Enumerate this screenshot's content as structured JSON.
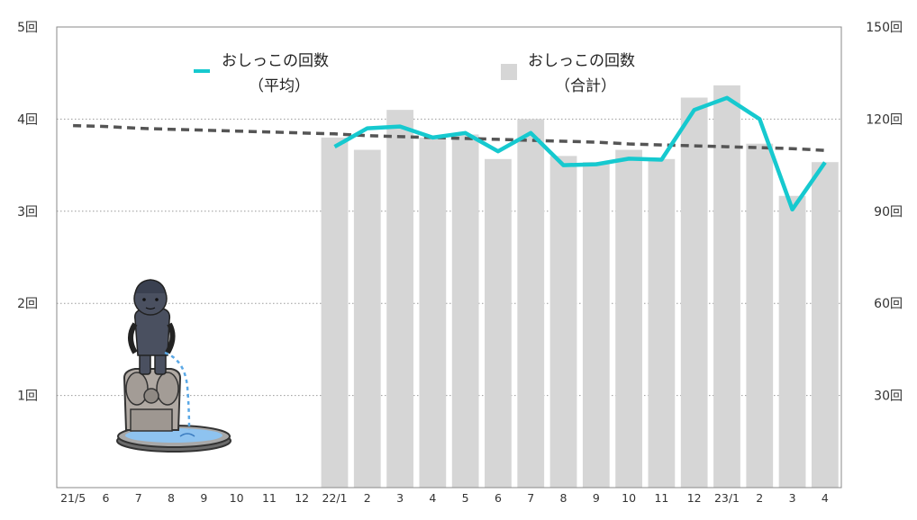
{
  "chart_data": {
    "type": "bar",
    "categories": [
      "21/5",
      "6",
      "7",
      "8",
      "9",
      "10",
      "11",
      "12",
      "22/1",
      "2",
      "3",
      "4",
      "5",
      "6",
      "7",
      "8",
      "9",
      "10",
      "11",
      "12",
      "23/1",
      "2",
      "3",
      "4"
    ],
    "series": [
      {
        "name": "おしっこの回数（合計）",
        "kind": "bar",
        "axis": "right",
        "color": "#d6d6d6",
        "values": [
          null,
          null,
          null,
          null,
          null,
          null,
          null,
          null,
          114,
          110,
          123,
          114,
          115,
          107,
          120,
          108,
          106,
          110,
          107,
          127,
          131,
          112,
          95,
          106
        ]
      },
      {
        "name": "おしっこの回数（平均）",
        "kind": "line",
        "axis": "left",
        "color": "#16c9cf",
        "values": [
          null,
          null,
          null,
          null,
          null,
          null,
          null,
          null,
          3.7,
          3.9,
          3.92,
          3.8,
          3.85,
          3.65,
          3.85,
          3.5,
          3.51,
          3.57,
          3.56,
          4.1,
          4.23,
          4.0,
          3.02,
          3.53
        ]
      },
      {
        "name": "trend",
        "kind": "dashed-line",
        "axis": "left",
        "color": "#555555",
        "values": [
          3.93,
          3.92,
          3.9,
          3.89,
          3.88,
          3.87,
          3.86,
          3.85,
          3.84,
          3.82,
          3.81,
          3.8,
          3.79,
          3.78,
          3.77,
          3.76,
          3.75,
          3.73,
          3.72,
          3.71,
          3.7,
          3.69,
          3.68,
          3.66
        ]
      }
    ],
    "y_left": {
      "ticks": [
        "1回",
        "2回",
        "3回",
        "4回",
        "5回"
      ],
      "tick_values": [
        1,
        2,
        3,
        4,
        5
      ],
      "range": [
        0,
        5
      ]
    },
    "y_right": {
      "ticks": [
        "30回",
        "60回",
        "90回",
        "120回",
        "150回"
      ],
      "tick_values": [
        30,
        60,
        90,
        120,
        150
      ],
      "range": [
        0,
        150
      ]
    },
    "grid": "horizontal-dotted",
    "legend": {
      "placement": "top",
      "line": {
        "label1": "おしっこの回数",
        "label2": "（平均）"
      },
      "bar": {
        "label1": "おしっこの回数",
        "label2": "（合計）"
      }
    },
    "illustration": "manneken-pis-statue"
  }
}
